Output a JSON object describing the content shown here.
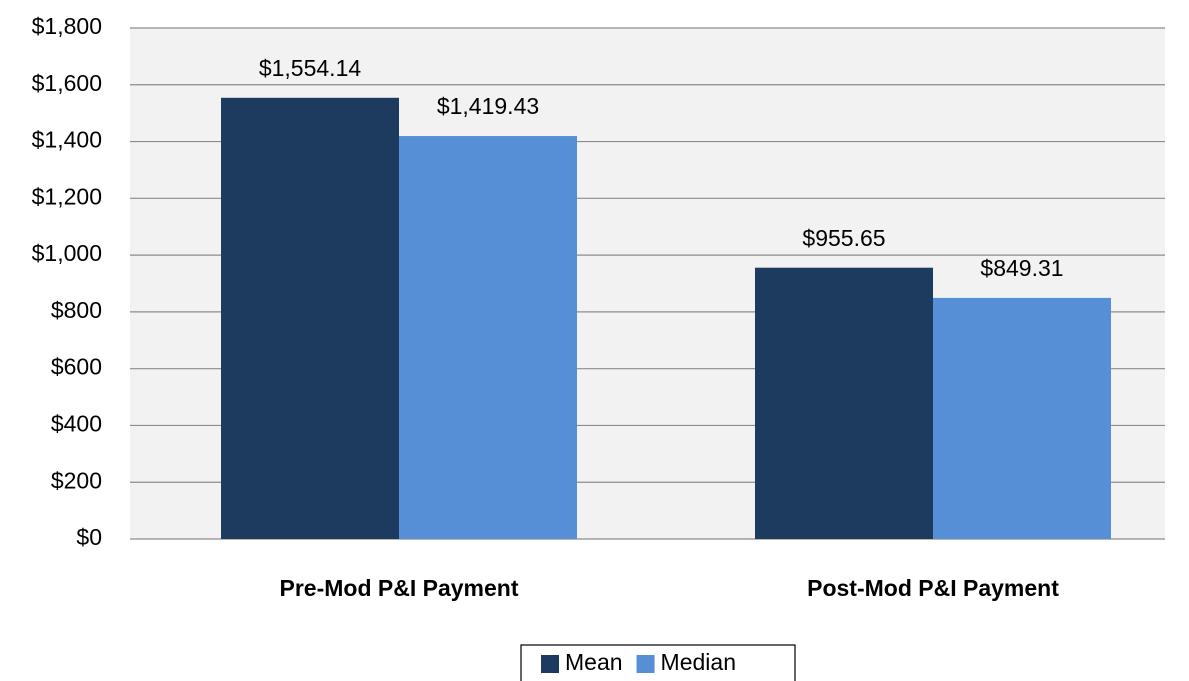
{
  "chart_data": {
    "type": "bar",
    "categories": [
      "Pre-Mod P&I Payment",
      "Post-Mod P&I Payment"
    ],
    "series": [
      {
        "name": "Mean",
        "color": "#1d3a5f",
        "values": [
          1554.14,
          955.65
        ],
        "value_labels": [
          "$1,554.14",
          "$955.65"
        ]
      },
      {
        "name": "Median",
        "color": "#568fd6",
        "values": [
          1419.43,
          849.31
        ],
        "value_labels": [
          "$1,419.43",
          "$849.31"
        ]
      }
    ],
    "ylim": [
      0,
      1800
    ],
    "yticks": [
      {
        "value": 0,
        "label": "$0"
      },
      {
        "value": 200,
        "label": "$200"
      },
      {
        "value": 400,
        "label": "$400"
      },
      {
        "value": 600,
        "label": "$600"
      },
      {
        "value": 800,
        "label": "$800"
      },
      {
        "value": 1000,
        "label": "$1,000"
      },
      {
        "value": 1200,
        "label": "$1,200"
      },
      {
        "value": 1400,
        "label": "$1,400"
      },
      {
        "value": 1600,
        "label": "$1,600"
      },
      {
        "value": 1800,
        "label": "$1,800"
      }
    ],
    "grid": true,
    "legend": "bottom"
  }
}
